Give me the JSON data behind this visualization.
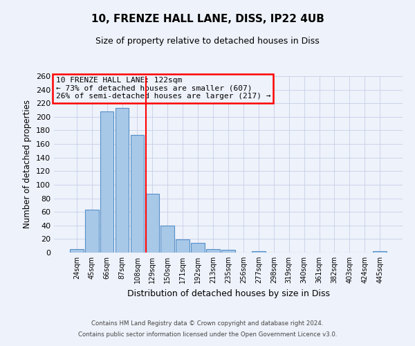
{
  "title": "10, FRENZE HALL LANE, DISS, IP22 4UB",
  "subtitle": "Size of property relative to detached houses in Diss",
  "xlabel": "Distribution of detached houses by size in Diss",
  "ylabel": "Number of detached properties",
  "bar_color": "#a8c8e8",
  "bar_edge_color": "#5590c8",
  "background_color": "#eef2fa",
  "grid_color": "#c5cfe8",
  "categories": [
    "24sqm",
    "45sqm",
    "66sqm",
    "87sqm",
    "108sqm",
    "129sqm",
    "150sqm",
    "171sqm",
    "192sqm",
    "213sqm",
    "235sqm",
    "256sqm",
    "277sqm",
    "298sqm",
    "319sqm",
    "340sqm",
    "361sqm",
    "382sqm",
    "403sqm",
    "424sqm",
    "445sqm"
  ],
  "values": [
    5,
    63,
    208,
    213,
    173,
    87,
    40,
    19,
    14,
    5,
    4,
    0,
    2,
    0,
    0,
    0,
    0,
    0,
    0,
    0,
    2
  ],
  "ylim": [
    0,
    260
  ],
  "yticks": [
    0,
    20,
    40,
    60,
    80,
    100,
    120,
    140,
    160,
    180,
    200,
    220,
    240,
    260
  ],
  "annotation_title": "10 FRENZE HALL LANE: 122sqm",
  "annotation_line1": "← 73% of detached houses are smaller (607)",
  "annotation_line2": "26% of semi-detached houses are larger (217) →",
  "footer1": "Contains HM Land Registry data © Crown copyright and database right 2024.",
  "footer2": "Contains public sector information licensed under the Open Government Licence v3.0."
}
